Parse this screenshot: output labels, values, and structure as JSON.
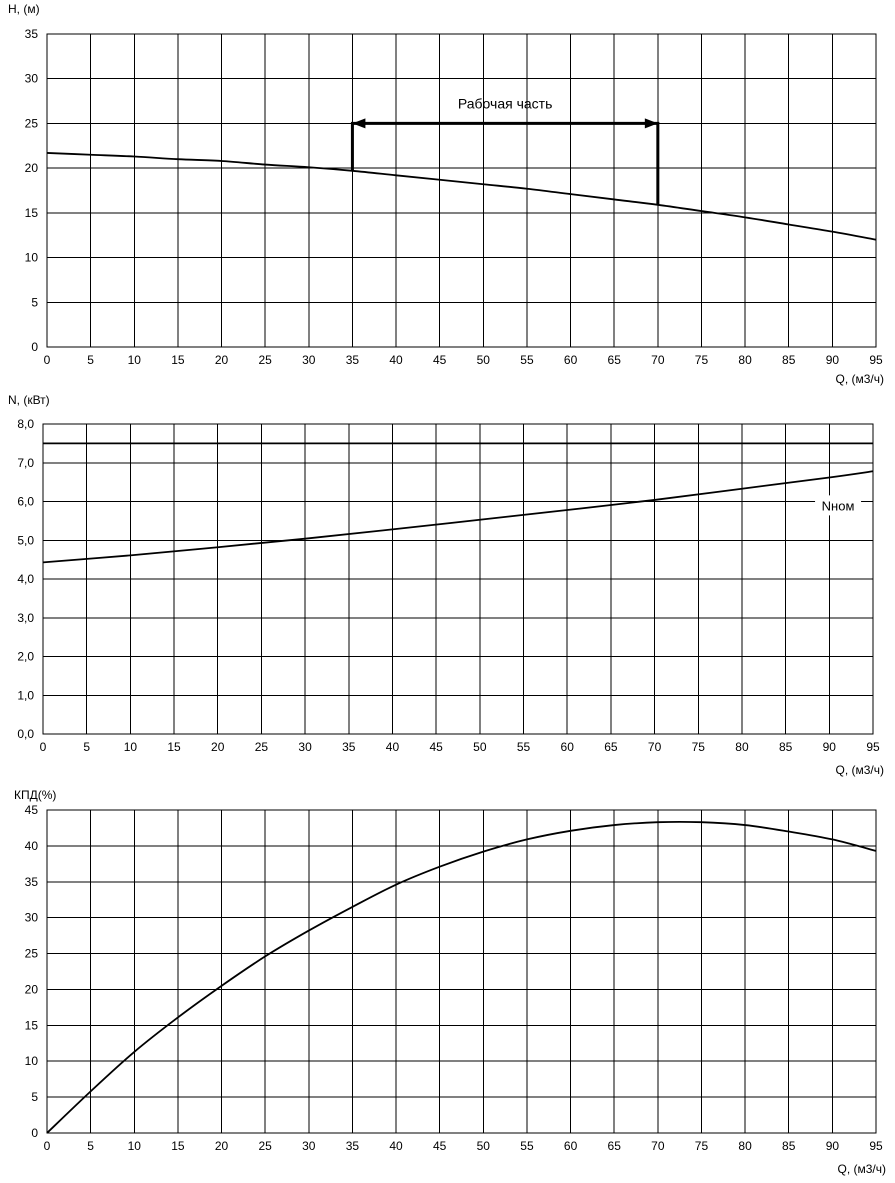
{
  "chart_data": [
    {
      "type": "line",
      "ylabel": "H, (м)",
      "xlabel": "Q, (м3/ч)",
      "xlim": [
        0,
        95
      ],
      "ylim": [
        0,
        35
      ],
      "xticks": [
        "0",
        "5",
        "10",
        "15",
        "20",
        "25",
        "30",
        "35",
        "40",
        "45",
        "50",
        "55",
        "60",
        "65",
        "70",
        "75",
        "80",
        "85",
        "90",
        "95"
      ],
      "yticks": [
        "0",
        "5",
        "10",
        "15",
        "20",
        "25",
        "30",
        "35"
      ],
      "grid": true,
      "series": [
        {
          "x": [
            0,
            5,
            10,
            15,
            20,
            25,
            30,
            35,
            40,
            45,
            50,
            55,
            60,
            65,
            70,
            75,
            80,
            85,
            90,
            95
          ],
          "y": [
            21.7,
            21.5,
            21.3,
            21.0,
            20.8,
            20.4,
            20.1,
            19.7,
            19.2,
            18.7,
            18.2,
            17.7,
            17.1,
            16.5,
            15.9,
            15.2,
            14.5,
            13.7,
            12.9,
            12.0
          ]
        }
      ],
      "annotation": {
        "text": "Рабочая часть",
        "x_start": 35,
        "x_end": 70,
        "y_level": 25,
        "y_left_end": 19.7,
        "y_right_end": 15.9
      }
    },
    {
      "type": "line",
      "ylabel": "N, (кВт)",
      "xlabel": "Q, (м3/ч)",
      "xlim": [
        0,
        95
      ],
      "ylim": [
        0,
        8
      ],
      "xticks": [
        "0",
        "5",
        "10",
        "15",
        "20",
        "25",
        "30",
        "35",
        "40",
        "45",
        "50",
        "55",
        "60",
        "65",
        "70",
        "75",
        "80",
        "85",
        "90",
        "95"
      ],
      "yticks": [
        "0,0",
        "1,0",
        "2,0",
        "3,0",
        "4,0",
        "5,0",
        "6,0",
        "7,0",
        "8,0"
      ],
      "grid": true,
      "series": [
        {
          "x": [
            0,
            10,
            20,
            30,
            40,
            50,
            60,
            70,
            80,
            90,
            95
          ],
          "y": [
            4.43,
            4.61,
            4.82,
            5.04,
            5.28,
            5.53,
            5.78,
            6.04,
            6.33,
            6.62,
            6.78
          ]
        },
        {
          "x": [
            0,
            95
          ],
          "y": [
            7.5,
            7.5
          ]
        }
      ],
      "annotation": {
        "text": "Nном",
        "x": 91,
        "y": 5.9
      }
    },
    {
      "type": "line",
      "ylabel": "КПД(%)",
      "xlabel": "Q, (м3/ч)",
      "xlim": [
        0,
        95
      ],
      "ylim": [
        0,
        45
      ],
      "xticks": [
        "0",
        "5",
        "10",
        "15",
        "20",
        "25",
        "30",
        "35",
        "40",
        "45",
        "50",
        "55",
        "60",
        "65",
        "70",
        "75",
        "80",
        "85",
        "90",
        "95"
      ],
      "yticks": [
        "0",
        "5",
        "10",
        "15",
        "20",
        "25",
        "30",
        "35",
        "40",
        "45"
      ],
      "grid": true,
      "series": [
        {
          "x": [
            0,
            5,
            10,
            15,
            20,
            25,
            30,
            35,
            40,
            45,
            50,
            55,
            60,
            65,
            70,
            75,
            80,
            85,
            90,
            95
          ],
          "y": [
            0,
            5.8,
            11.3,
            16.1,
            20.5,
            24.6,
            28.2,
            31.5,
            34.6,
            37.1,
            39.2,
            40.9,
            42.1,
            42.9,
            43.3,
            43.3,
            42.9,
            42.0,
            40.9,
            39.3
          ]
        }
      ]
    }
  ]
}
